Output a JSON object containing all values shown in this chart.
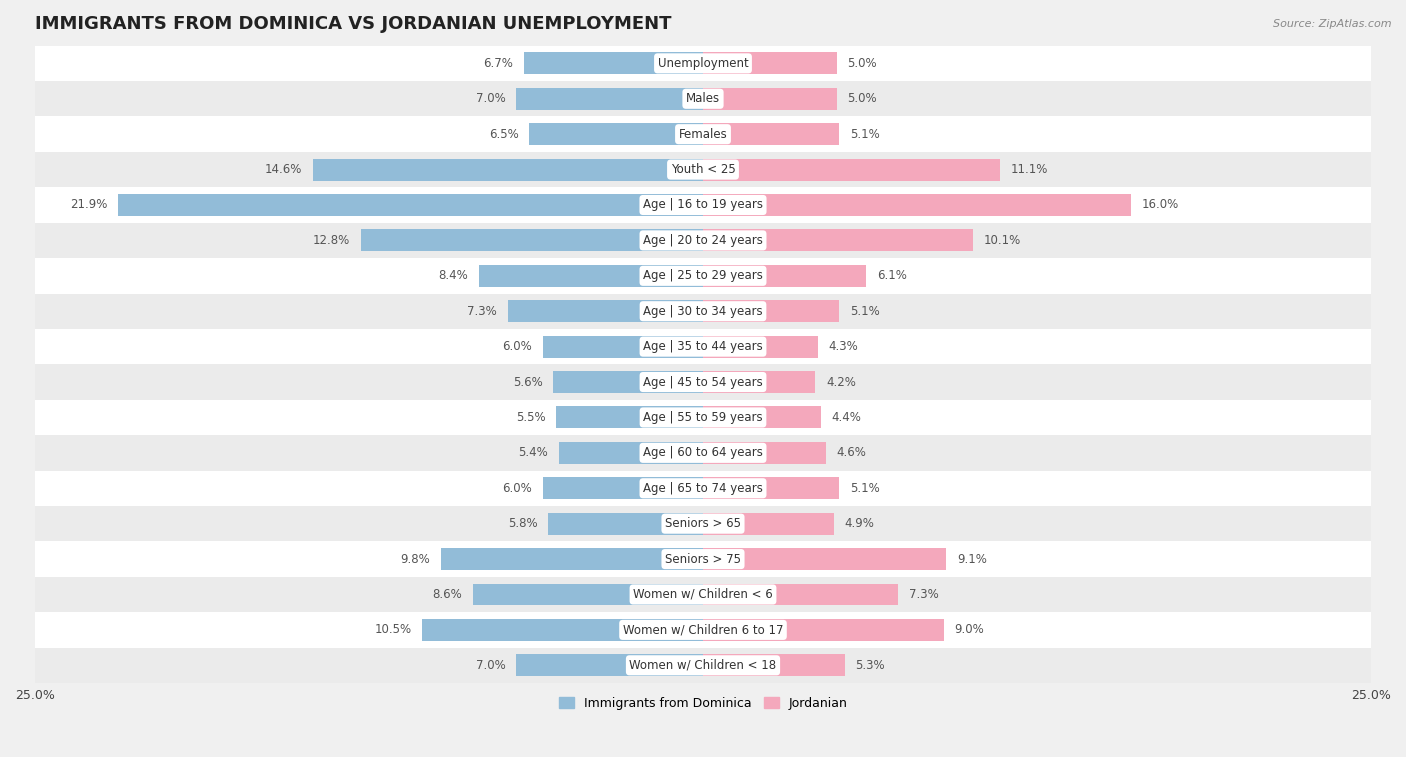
{
  "title": "IMMIGRANTS FROM DOMINICA VS JORDANIAN UNEMPLOYMENT",
  "source": "Source: ZipAtlas.com",
  "categories": [
    "Unemployment",
    "Males",
    "Females",
    "Youth < 25",
    "Age | 16 to 19 years",
    "Age | 20 to 24 years",
    "Age | 25 to 29 years",
    "Age | 30 to 34 years",
    "Age | 35 to 44 years",
    "Age | 45 to 54 years",
    "Age | 55 to 59 years",
    "Age | 60 to 64 years",
    "Age | 65 to 74 years",
    "Seniors > 65",
    "Seniors > 75",
    "Women w/ Children < 6",
    "Women w/ Children 6 to 17",
    "Women w/ Children < 18"
  ],
  "left_values": [
    6.7,
    7.0,
    6.5,
    14.6,
    21.9,
    12.8,
    8.4,
    7.3,
    6.0,
    5.6,
    5.5,
    5.4,
    6.0,
    5.8,
    9.8,
    8.6,
    10.5,
    7.0
  ],
  "right_values": [
    5.0,
    5.0,
    5.1,
    11.1,
    16.0,
    10.1,
    6.1,
    5.1,
    4.3,
    4.2,
    4.4,
    4.6,
    5.1,
    4.9,
    9.1,
    7.3,
    9.0,
    5.3
  ],
  "left_color": "#92bcd8",
  "right_color": "#f4a8bc",
  "left_label": "Immigrants from Dominica",
  "right_label": "Jordanian",
  "xlim": 25.0,
  "row_color_even": "#f0f0f0",
  "row_color_odd": "#e2e2e2",
  "title_fontsize": 13,
  "label_fontsize": 8.5,
  "value_fontsize": 8.5,
  "cat_label_fontsize": 8.5
}
